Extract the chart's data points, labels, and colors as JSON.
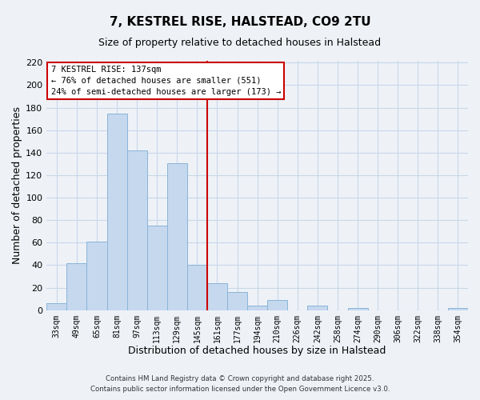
{
  "title": "7, KESTREL RISE, HALSTEAD, CO9 2TU",
  "subtitle": "Size of property relative to detached houses in Halstead",
  "xlabel": "Distribution of detached houses by size in Halstead",
  "ylabel": "Number of detached properties",
  "bar_color": "#c5d8ee",
  "bar_edge_color": "#8ab4d8",
  "bins": [
    "33sqm",
    "49sqm",
    "65sqm",
    "81sqm",
    "97sqm",
    "113sqm",
    "129sqm",
    "145sqm",
    "161sqm",
    "177sqm",
    "194sqm",
    "210sqm",
    "226sqm",
    "242sqm",
    "258sqm",
    "274sqm",
    "290sqm",
    "306sqm",
    "322sqm",
    "338sqm",
    "354sqm"
  ],
  "values": [
    6,
    42,
    61,
    175,
    142,
    75,
    131,
    40,
    24,
    16,
    4,
    9,
    0,
    4,
    0,
    2,
    0,
    0,
    0,
    0,
    2
  ],
  "vline_color": "#cc0000",
  "annotation_title": "7 KESTREL RISE: 137sqm",
  "annotation_line1": "← 76% of detached houses are smaller (551)",
  "annotation_line2": "24% of semi-detached houses are larger (173) →",
  "annotation_box_color": "#ffffff",
  "annotation_box_edge": "#cc0000",
  "footer1": "Contains HM Land Registry data © Crown copyright and database right 2025.",
  "footer2": "Contains public sector information licensed under the Open Government Licence v3.0.",
  "grid_color": "#c8d8e8",
  "background_color": "#eef2f7",
  "ylim": [
    0,
    222
  ],
  "yticks": [
    0,
    20,
    40,
    60,
    80,
    100,
    120,
    140,
    160,
    180,
    200,
    220
  ]
}
